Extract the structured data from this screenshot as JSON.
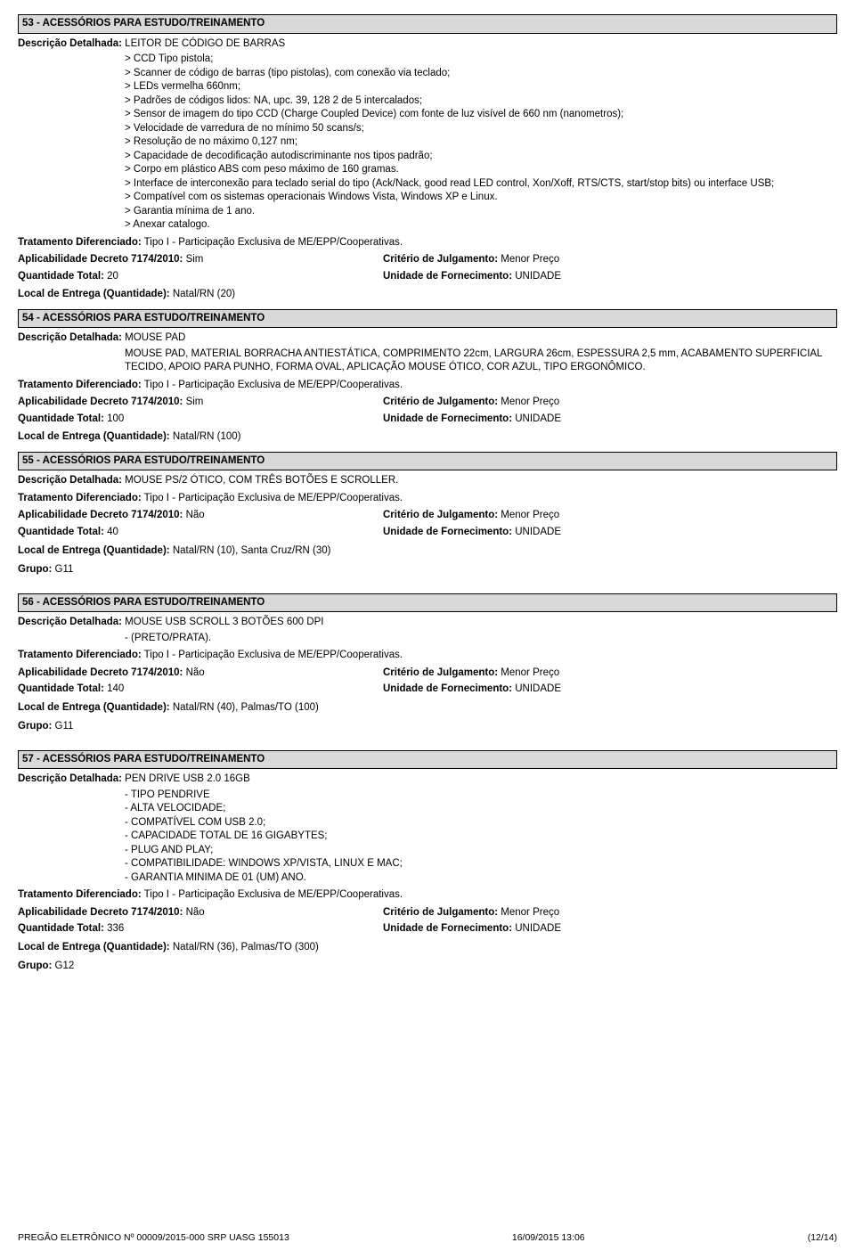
{
  "items": [
    {
      "key": "i53",
      "header": "53 - ACESSÓRIOS PARA ESTUDO/TREINAMENTO",
      "desc_label": "Descrição Detalhada:",
      "desc_first": "LEITOR DE CÓDIGO DE BARRAS",
      "desc_lines": [
        "> CCD Tipo pistola;",
        "> Scanner de código de barras (tipo pistolas), com conexão via teclado;",
        "> LEDs vermelha 660nm;",
        "> Padrões de códigos lidos: NA, upc. 39, 128 2 de 5 intercalados;",
        "> Sensor de imagem do tipo CCD (Charge Coupled Device) com fonte de luz visível de 660 nm (nanometros);",
        "> Velocidade de varredura de no mínimo 50 scans/s;",
        "> Resolução de no máximo 0,127 nm;",
        "> Capacidade de decodificação autodiscriminante nos tipos padrão;",
        "> Corpo em plástico ABS com peso máximo de 160 gramas.",
        "> Interface de interconexão para teclado serial do tipo (Ack/Nack, good read LED control, Xon/Xoff, RTS/CTS, start/stop bits) ou interface USB;",
        "> Compatível com os sistemas operacionais Windows Vista, Windows XP e Linux.",
        "> Garantia mínima de 1 ano.",
        "> Anexar catalogo."
      ],
      "treat_label": "Tratamento Diferenciado:",
      "treat_value": "Tipo I - Participação Exclusiva de ME/EPP/Cooperativas.",
      "aplic_label": "Aplicabilidade Decreto 7174/2010:",
      "aplic_value": "Sim",
      "crit_label": "Critério de Julgamento:",
      "crit_value": "Menor Preço",
      "qtd_label": "Quantidade Total:",
      "qtd_value": "20",
      "unid_label": "Unidade de Fornecimento:",
      "unid_value": "UNIDADE",
      "local_label": "Local de Entrega (Quantidade):",
      "local_value": "Natal/RN (20)"
    },
    {
      "key": "i54",
      "header": "54 - ACESSÓRIOS PARA ESTUDO/TREINAMENTO",
      "desc_label": "Descrição Detalhada:",
      "desc_first": "MOUSE PAD",
      "desc_lines": [
        "MOUSE PAD, MATERIAL BORRACHA ANTIESTÁTICA, COMPRIMENTO 22cm, LARGURA 26cm, ESPESSURA 2,5 mm, ACABAMENTO SUPERFICIAL TECIDO, APOIO PARA PUNHO, FORMA OVAL, APLICAÇÃO MOUSE ÓTICO, COR AZUL, TIPO ERGONÔMICO."
      ],
      "treat_label": "Tratamento Diferenciado:",
      "treat_value": "Tipo I - Participação Exclusiva de ME/EPP/Cooperativas.",
      "aplic_label": "Aplicabilidade Decreto 7174/2010:",
      "aplic_value": "Sim",
      "crit_label": "Critério de Julgamento:",
      "crit_value": "Menor Preço",
      "qtd_label": "Quantidade Total:",
      "qtd_value": "100",
      "unid_label": "Unidade de Fornecimento:",
      "unid_value": "UNIDADE",
      "local_label": "Local de Entrega (Quantidade):",
      "local_value": "Natal/RN (100)"
    },
    {
      "key": "i55",
      "header": "55 - ACESSÓRIOS PARA ESTUDO/TREINAMENTO",
      "desc_label": "Descrição Detalhada:",
      "desc_first": "MOUSE PS/2 ÓTICO, COM TRÊS BOTÕES E SCROLLER.",
      "desc_lines": [],
      "treat_label": "Tratamento Diferenciado:",
      "treat_value": "Tipo I - Participação Exclusiva de ME/EPP/Cooperativas.",
      "aplic_label": "Aplicabilidade Decreto 7174/2010:",
      "aplic_value": "Não",
      "crit_label": "Critério de Julgamento:",
      "crit_value": "Menor Preço",
      "qtd_label": "Quantidade Total:",
      "qtd_value": "40",
      "unid_label": "Unidade de Fornecimento:",
      "unid_value": "UNIDADE",
      "local_label": "Local de Entrega (Quantidade):",
      "local_value": "Natal/RN (10), Santa Cruz/RN (30)",
      "grupo_label": "Grupo:",
      "grupo_value": "G11"
    },
    {
      "key": "i56",
      "header": "56 - ACESSÓRIOS PARA ESTUDO/TREINAMENTO",
      "desc_label": "Descrição Detalhada:",
      "desc_first": "MOUSE USB SCROLL 3 BOTÕES 600 DPI",
      "desc_lines": [
        "- (PRETO/PRATA)."
      ],
      "treat_label": "Tratamento Diferenciado:",
      "treat_value": "Tipo I - Participação Exclusiva de ME/EPP/Cooperativas.",
      "aplic_label": "Aplicabilidade Decreto 7174/2010:",
      "aplic_value": "Não",
      "crit_label": "Critério de Julgamento:",
      "crit_value": "Menor Preço",
      "qtd_label": "Quantidade Total:",
      "qtd_value": "140",
      "unid_label": "Unidade de Fornecimento:",
      "unid_value": "UNIDADE",
      "local_label": "Local de Entrega (Quantidade):",
      "local_value": "Natal/RN (40), Palmas/TO (100)",
      "grupo_label": "Grupo:",
      "grupo_value": "G11"
    },
    {
      "key": "i57",
      "header": "57 - ACESSÓRIOS PARA ESTUDO/TREINAMENTO",
      "desc_label": "Descrição Detalhada:",
      "desc_first": "PEN DRIVE USB 2.0 16GB",
      "desc_lines": [
        "- TIPO PENDRIVE",
        "- ALTA VELOCIDADE;",
        "- COMPATÍVEL COM USB 2.0;",
        "- CAPACIDADE TOTAL DE 16 GIGABYTES;",
        "- PLUG AND PLAY;",
        "- COMPATIBILIDADE: WINDOWS XP/VISTA, LINUX E MAC;",
        "- GARANTIA MINIMA DE 01 (UM) ANO."
      ],
      "treat_label": "Tratamento Diferenciado:",
      "treat_value": "Tipo I - Participação Exclusiva de ME/EPP/Cooperativas.",
      "aplic_label": "Aplicabilidade Decreto 7174/2010:",
      "aplic_value": "Não",
      "crit_label": "Critério de Julgamento:",
      "crit_value": "Menor Preço",
      "qtd_label": "Quantidade Total:",
      "qtd_value": "336",
      "unid_label": "Unidade de Fornecimento:",
      "unid_value": "UNIDADE",
      "local_label": "Local de Entrega (Quantidade):",
      "local_value": "Natal/RN (36), Palmas/TO (300)",
      "grupo_label": "Grupo:",
      "grupo_value": "G12"
    }
  ],
  "footer": {
    "left": "PREGÃO ELETRÔNICO  Nº 00009/2015-000 SRP UASG 155013",
    "center": "16/09/2015  13:06",
    "right": "(12/14)"
  }
}
